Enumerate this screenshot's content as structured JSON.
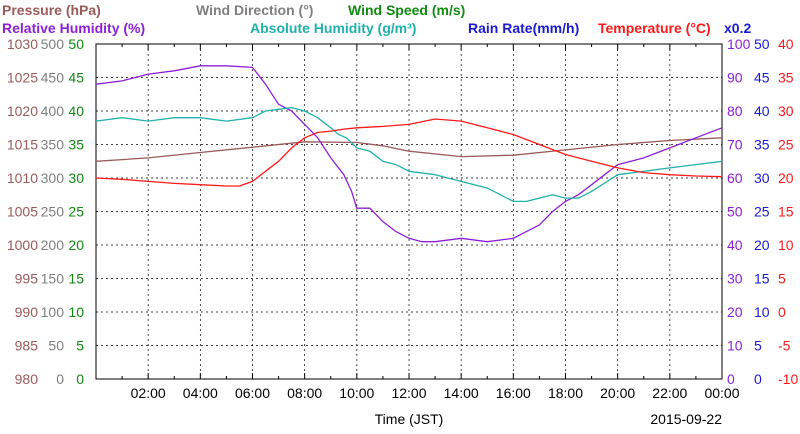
{
  "chart_data": {
    "type": "line",
    "legend_row1": [
      {
        "text": "Pressure (hPa)",
        "color": "#9a5a5a"
      },
      {
        "text": "Wind Direction (°)",
        "color": "#7f7f7f"
      },
      {
        "text": "Wind Speed (m/s)",
        "color": "#118a11"
      }
    ],
    "legend_row2": [
      {
        "text": "Relative Humidity (%)",
        "color": "#8e1fd8"
      },
      {
        "text": "Absolute Humidity (g/m³)",
        "color": "#20b2aa"
      },
      {
        "text": "Rain Rate(mm/h)",
        "color": "#1a1ad4"
      },
      {
        "text": "Temperature (°C)",
        "color": "#ff1a1a"
      }
    ],
    "multiplier_label": "x0.2",
    "xlabel": "Time (JST)",
    "date": "2015-09-22",
    "x_ticks": [
      "02:00",
      "04:00",
      "06:00",
      "08:00",
      "10:00",
      "12:00",
      "14:00",
      "16:00",
      "18:00",
      "20:00",
      "22:00",
      "00:00"
    ],
    "x_range": [
      0,
      24
    ],
    "axes": {
      "pressure": {
        "ticks": [
          "1030",
          "1025",
          "1020",
          "1015",
          "1010",
          "1005",
          "1000",
          "995",
          "990",
          "985",
          "980"
        ],
        "range": [
          980,
          1030
        ],
        "color": "#9a5a5a"
      },
      "wind_direction": {
        "ticks": [
          "500",
          "450",
          "400",
          "350",
          "300",
          "250",
          "200",
          "150",
          "100",
          "50",
          "0"
        ],
        "range": [
          0,
          500
        ],
        "color": "#7f7f7f"
      },
      "wind_speed": {
        "ticks": [
          "50",
          "45",
          "40",
          "35",
          "30",
          "25",
          "20",
          "15",
          "10",
          "5",
          "0"
        ],
        "range": [
          0,
          50
        ],
        "color": "#118a11"
      },
      "humidity": {
        "ticks": [
          "100",
          "90",
          "80",
          "70",
          "60",
          "50",
          "40",
          "30",
          "20",
          "10",
          "0"
        ],
        "range": [
          0,
          100
        ],
        "color": "#8e1fd8"
      },
      "rain_rate": {
        "ticks": [
          "50",
          "45",
          "40",
          "35",
          "30",
          "25",
          "20",
          "15",
          "10",
          "5",
          "0"
        ],
        "range": [
          0,
          50
        ],
        "color": "#1a1ad4"
      },
      "temperature": {
        "ticks": [
          "40",
          "35",
          "30",
          "25",
          "20",
          "15",
          "10",
          "5",
          "0",
          "-5",
          "-10"
        ],
        "range": [
          -10,
          40
        ],
        "color": "#ff1a1a"
      }
    },
    "series": [
      {
        "name": "Pressure (hPa)",
        "axis": "pressure",
        "color": "#9a5a5a",
        "x": [
          0,
          2,
          4,
          6,
          8,
          10,
          11,
          12,
          14,
          16,
          18,
          20,
          22,
          24
        ],
        "y": [
          1012.5,
          1013.0,
          1013.8,
          1014.6,
          1015.4,
          1015.3,
          1014.8,
          1014.0,
          1013.2,
          1013.4,
          1014.2,
          1015.0,
          1015.6,
          1016.0
        ]
      },
      {
        "name": "Relative Humidity (%)",
        "axis": "humidity",
        "color": "#8e1fd8",
        "x": [
          0,
          1,
          1.5,
          2,
          3,
          4,
          5,
          6,
          6.5,
          7,
          7.5,
          8,
          8.5,
          9,
          9.5,
          9.8,
          10,
          10.5,
          11,
          11.5,
          12,
          12.5,
          13,
          14,
          15,
          16,
          16.5,
          17,
          17.5,
          18,
          18.5,
          19,
          19.5,
          20,
          21,
          22,
          23,
          24
        ],
        "y": [
          88,
          89,
          90,
          91,
          92,
          93.5,
          93.5,
          93,
          88,
          82,
          80,
          76,
          72,
          66,
          61,
          56,
          51,
          51,
          47,
          44,
          42,
          41,
          41,
          42,
          41,
          42,
          44,
          46,
          50,
          53,
          55,
          58,
          61,
          64,
          66,
          69,
          72,
          75
        ]
      },
      {
        "name": "Absolute Humidity (g/m³)",
        "axis": "humidity",
        "color": "#20b2aa",
        "x": [
          0,
          1,
          2,
          3,
          4,
          5,
          6,
          6.5,
          7,
          7.5,
          8,
          8.5,
          9,
          9.3,
          9.6,
          10,
          10.5,
          11,
          11.5,
          12,
          13,
          14,
          15,
          15.5,
          16,
          16.5,
          17,
          17.5,
          18,
          18.5,
          19,
          20,
          21,
          22,
          23,
          24
        ],
        "y": [
          77,
          78,
          77,
          78,
          78,
          77,
          78,
          80,
          80.5,
          81,
          80,
          78,
          75,
          73,
          72,
          69,
          68,
          65,
          64,
          62,
          61,
          59,
          57,
          55,
          53,
          53,
          54,
          55,
          54,
          54,
          56,
          61,
          62,
          63,
          64,
          65
        ]
      },
      {
        "name": "Temperature (°C)",
        "axis": "temperature",
        "color": "#ff1a1a",
        "x": [
          0,
          1,
          2,
          3,
          4,
          5,
          5.5,
          6,
          6.5,
          7,
          7.5,
          8,
          8.5,
          9,
          9.5,
          10,
          11,
          12,
          13,
          14,
          15,
          16,
          17,
          18,
          19,
          20,
          21,
          22,
          23,
          24
        ],
        "y": [
          20,
          19.8,
          19.5,
          19.2,
          19,
          18.8,
          18.8,
          19.5,
          21,
          22.5,
          24.5,
          26,
          26.8,
          27,
          27.3,
          27.5,
          27.7,
          28,
          28.8,
          28.5,
          27.5,
          26.5,
          25,
          23.5,
          22.5,
          21.5,
          20.8,
          20.5,
          20.3,
          20.2
        ]
      }
    ],
    "grid": true
  }
}
